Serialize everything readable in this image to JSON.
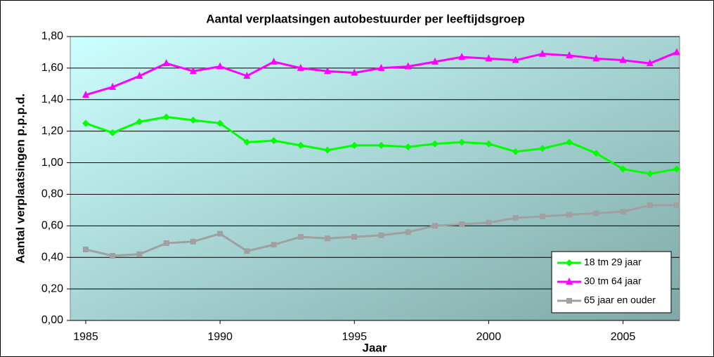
{
  "chart_data": {
    "type": "line",
    "title": "Aantal verplaatsingen autobestuurder per leeftijdsgroep",
    "x_label": "Jaar",
    "y_label": "Aantal verplaatsingen p.p.p.d.",
    "x": [
      1985,
      1986,
      1987,
      1988,
      1989,
      1990,
      1991,
      1992,
      1993,
      1994,
      1995,
      1996,
      1997,
      1998,
      1999,
      2000,
      2001,
      2002,
      2003,
      2004,
      2005,
      2006,
      2007
    ],
    "series": [
      {
        "name": "18 tm 29 jaar",
        "color": "#00ff00",
        "marker": "diamond",
        "values": [
          1.25,
          1.19,
          1.26,
          1.29,
          1.27,
          1.25,
          1.13,
          1.14,
          1.11,
          1.08,
          1.11,
          1.11,
          1.1,
          1.12,
          1.13,
          1.12,
          1.07,
          1.09,
          1.13,
          1.06,
          0.96,
          0.93,
          0.96
        ]
      },
      {
        "name": "30 tm 64 jaar",
        "color": "#ff00ff",
        "marker": "triangle",
        "values": [
          1.43,
          1.48,
          1.55,
          1.63,
          1.58,
          1.61,
          1.55,
          1.64,
          1.6,
          1.58,
          1.57,
          1.6,
          1.61,
          1.64,
          1.67,
          1.66,
          1.65,
          1.69,
          1.68,
          1.66,
          1.65,
          1.63,
          1.7
        ]
      },
      {
        "name": "65 jaar en ouder",
        "color": "#a0a0a0",
        "marker": "square",
        "values": [
          0.45,
          0.41,
          0.42,
          0.49,
          0.5,
          0.55,
          0.44,
          0.48,
          0.53,
          0.52,
          0.53,
          0.54,
          0.56,
          0.6,
          0.61,
          0.62,
          0.65,
          0.66,
          0.67,
          0.68,
          0.69,
          0.73,
          0.73
        ]
      }
    ],
    "xlim": [
      1985,
      2007
    ],
    "xticks": [
      1985,
      1990,
      1995,
      2000,
      2005
    ],
    "ylim": [
      0,
      1.8
    ],
    "yticks": [
      {
        "value": 0,
        "label": "0,00"
      },
      {
        "value": 0.2,
        "label": "0,20"
      },
      {
        "value": 0.4,
        "label": "0,40"
      },
      {
        "value": 0.6,
        "label": "0,60"
      },
      {
        "value": 0.8,
        "label": "0,80"
      },
      {
        "value": 1.0,
        "label": "1,00"
      },
      {
        "value": 1.2,
        "label": "1,20"
      },
      {
        "value": 1.4,
        "label": "1,40"
      },
      {
        "value": 1.6,
        "label": "1,60"
      },
      {
        "value": 1.8,
        "label": "1,80"
      }
    ],
    "grid": true,
    "legend_position": "lower right"
  }
}
